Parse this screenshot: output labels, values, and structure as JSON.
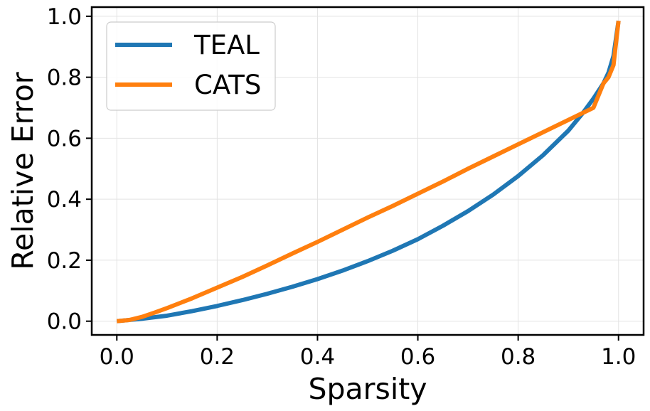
{
  "chart_data": {
    "type": "line",
    "title": "",
    "xlabel": "Sparsity",
    "ylabel": "Relative Error",
    "xlim": [
      -0.05,
      1.05
    ],
    "ylim": [
      -0.045,
      1.03
    ],
    "xticks": [
      0.0,
      0.2,
      0.4,
      0.6,
      0.8,
      1.0
    ],
    "xtick_labels": [
      "0.0",
      "0.2",
      "0.4",
      "0.6",
      "0.8",
      "1.0"
    ],
    "yticks": [
      0.0,
      0.2,
      0.4,
      0.6,
      0.8,
      1.0
    ],
    "ytick_labels": [
      "0.0",
      "0.2",
      "0.4",
      "0.6",
      "0.8",
      "1.0"
    ],
    "grid": true,
    "legend_position": "top-left",
    "series": [
      {
        "name": "TEAL",
        "color": "#1f77b4",
        "x": [
          0.0,
          0.05,
          0.1,
          0.15,
          0.2,
          0.25,
          0.3,
          0.35,
          0.4,
          0.45,
          0.5,
          0.55,
          0.6,
          0.65,
          0.7,
          0.75,
          0.8,
          0.85,
          0.9,
          0.93,
          0.95,
          0.97,
          0.98,
          0.99,
          1.0
        ],
        "y": [
          0.0,
          0.008,
          0.018,
          0.033,
          0.05,
          0.069,
          0.09,
          0.113,
          0.138,
          0.166,
          0.197,
          0.231,
          0.269,
          0.313,
          0.361,
          0.415,
          0.476,
          0.545,
          0.625,
          0.685,
          0.73,
          0.78,
          0.815,
          0.87,
          0.985
        ]
      },
      {
        "name": "CATS",
        "color": "#ff7f0e",
        "x": [
          0.0,
          0.025,
          0.05,
          0.075,
          0.1,
          0.15,
          0.2,
          0.25,
          0.3,
          0.35,
          0.4,
          0.45,
          0.5,
          0.55,
          0.6,
          0.65,
          0.7,
          0.75,
          0.8,
          0.85,
          0.9,
          0.95,
          0.97,
          0.98,
          0.99,
          1.0
        ],
        "y": [
          0.0,
          0.004,
          0.014,
          0.028,
          0.043,
          0.075,
          0.11,
          0.145,
          0.183,
          0.222,
          0.26,
          0.3,
          0.34,
          0.378,
          0.418,
          0.458,
          0.5,
          0.54,
          0.58,
          0.62,
          0.66,
          0.7,
          0.78,
          0.8,
          0.84,
          0.985
        ]
      }
    ]
  }
}
